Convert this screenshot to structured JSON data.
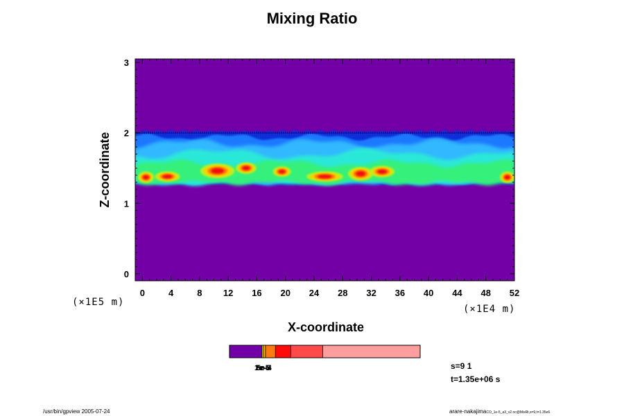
{
  "chart_data": {
    "type": "heatmap",
    "title": "Mixing Ratio",
    "xlabel": "X-coordinate",
    "ylabel": "Z-coordinate",
    "x_scale_note": "(×1E4 m)",
    "y_scale_note": "(×1E5 m)",
    "xlim": [
      -1,
      52
    ],
    "ylim": [
      -0.1,
      3.05
    ],
    "x_ticks": [
      0,
      4,
      8,
      12,
      16,
      20,
      24,
      28,
      32,
      36,
      40,
      44,
      48,
      52
    ],
    "y_ticks": [
      0,
      1,
      2,
      3
    ],
    "background_color": "#7300a6",
    "layer": {
      "z_bottom": 1.27,
      "z_top": 2.0,
      "description_colors": [
        "#0a2fd8",
        "#1e78ff",
        "#33b8ff",
        "#29e8d8",
        "#35f07a",
        "#b8f020",
        "#ffd000",
        "#ff7a00",
        "#f01010"
      ]
    },
    "hotspots": [
      {
        "x": 0.5,
        "z": 1.37,
        "w": 1.4,
        "h": 0.1
      },
      {
        "x": 3.5,
        "z": 1.38,
        "w": 2.2,
        "h": 0.09
      },
      {
        "x": 10.5,
        "z": 1.46,
        "w": 3.0,
        "h": 0.13
      },
      {
        "x": 14.5,
        "z": 1.5,
        "w": 1.8,
        "h": 0.1
      },
      {
        "x": 19.5,
        "z": 1.45,
        "w": 1.6,
        "h": 0.09
      },
      {
        "x": 25.5,
        "z": 1.38,
        "w": 3.2,
        "h": 0.09
      },
      {
        "x": 30.5,
        "z": 1.42,
        "w": 2.2,
        "h": 0.12
      },
      {
        "x": 33.5,
        "z": 1.45,
        "w": 2.2,
        "h": 0.1
      },
      {
        "x": 51.0,
        "z": 1.37,
        "w": 1.3,
        "h": 0.1
      }
    ],
    "colorbar": {
      "segments": [
        {
          "color": "#7300a6",
          "weight": 46
        },
        {
          "color": "#f5e600",
          "weight": 2
        },
        {
          "color": "#ffb000",
          "weight": 3
        },
        {
          "color": "#ff7a10",
          "weight": 14
        },
        {
          "color": "#ff0a0a",
          "weight": 22
        },
        {
          "color": "#ff4a4a",
          "weight": 45
        },
        {
          "color": "#ff9e9e",
          "weight": 138
        }
      ],
      "labels": [
        "1e-5",
        "2e-5",
        "5e-4"
      ]
    }
  },
  "info": {
    "s_label": "s=9 1",
    "t_label": "t=1.35e+06 s"
  },
  "footer": {
    "left": "/usr/bin/gpview 2005-07-24",
    "right": "arare-nakajima",
    "right_small": "CO_1e-5_a3_v2.nc@MixRt,s=9,t=1.35e6"
  }
}
